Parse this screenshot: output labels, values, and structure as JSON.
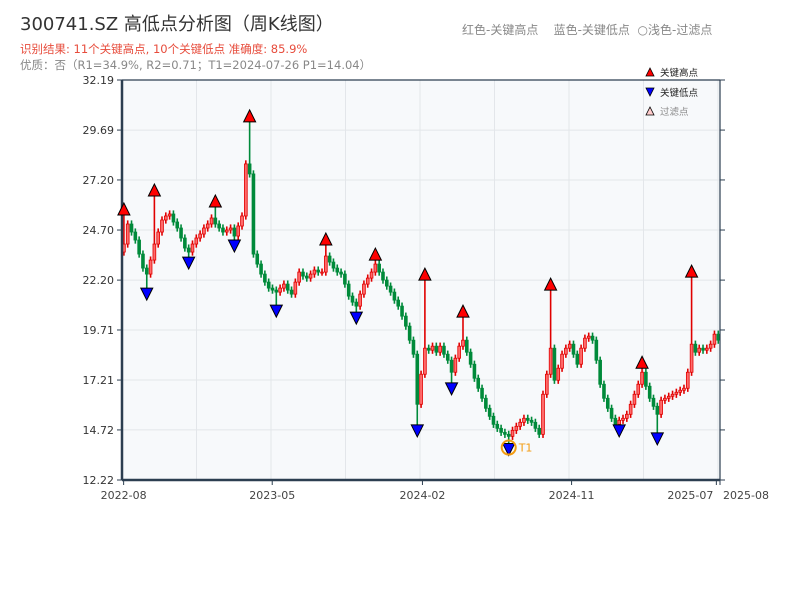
{
  "header": {
    "title": "300741.SZ 高低点分析图（周K线图）",
    "result": "识别结果: 11个关键高点, 10个关键低点  准确度: 85.9%",
    "quality": "优质：否（R1=34.9%, R2=0.71；T1=2024-07-26 P1=14.04）",
    "color_legend": "红色-关键高点    蓝色-关键低点  ○浅色-过滤点"
  },
  "chart_data": {
    "type": "candlestick",
    "title": "300741.SZ 高低点分析图（周K线图）",
    "first_week": "2022-07-29",
    "ylim": [
      12.22,
      32.19
    ],
    "yticks": [
      "12.22",
      "14.72",
      "17.21",
      "19.71",
      "22.20",
      "24.70",
      "27.20",
      "29.69",
      "32.19"
    ],
    "xticks": [
      {
        "label": "2022-08",
        "date": "2022-08-01"
      },
      {
        "label": "2023-05",
        "date": "2023-05-01"
      },
      {
        "label": "2024-02",
        "date": "2024-02-01"
      },
      {
        "label": "2024-11",
        "date": "2024-11-01"
      },
      {
        "label": "2025-07",
        "date": "2025-07-25"
      },
      {
        "label": "2025-08",
        "date": "2025-08-08"
      }
    ],
    "grid": true,
    "up_color": "#e00000",
    "down_color": "#008a3a",
    "closes": [
      24.0,
      25.0,
      24.6,
      24.2,
      23.5,
      22.8,
      22.5,
      23.2,
      24.0,
      24.6,
      25.2,
      25.4,
      25.5,
      25.1,
      24.8,
      24.3,
      23.8,
      23.6,
      24.0,
      24.3,
      24.5,
      24.8,
      25.0,
      25.3,
      25.0,
      24.8,
      24.6,
      24.7,
      24.8,
      24.4,
      24.9,
      25.4,
      28.0,
      27.5,
      23.5,
      23.0,
      22.5,
      22.1,
      21.8,
      21.7,
      21.6,
      21.8,
      22.0,
      21.7,
      21.5,
      22.1,
      22.6,
      22.4,
      22.3,
      22.5,
      22.7,
      22.6,
      22.6,
      23.4,
      23.1,
      22.8,
      22.6,
      22.5,
      22.0,
      21.4,
      21.1,
      20.9,
      21.5,
      22.0,
      22.3,
      22.6,
      23.0,
      22.6,
      22.2,
      21.9,
      21.6,
      21.2,
      20.9,
      20.4,
      19.9,
      19.2,
      18.5,
      16.0,
      17.5,
      18.8,
      18.7,
      18.9,
      18.6,
      18.9,
      18.5,
      18.2,
      17.6,
      18.3,
      18.9,
      19.2,
      18.6,
      18.0,
      17.3,
      16.8,
      16.3,
      15.8,
      15.4,
      15.0,
      14.8,
      14.6,
      14.5,
      14.4,
      14.7,
      14.9,
      15.1,
      15.3,
      15.2,
      15.1,
      14.8,
      14.5,
      16.5,
      17.5,
      18.8,
      17.2,
      17.8,
      18.5,
      18.8,
      19.0,
      18.5,
      18.0,
      18.8,
      19.3,
      19.4,
      19.2,
      18.2,
      17.0,
      16.3,
      15.8,
      15.3,
      15.0,
      15.2,
      15.3,
      15.5,
      16.0,
      16.5,
      17.0,
      17.6,
      16.9,
      16.3,
      15.9,
      15.5,
      16.2,
      16.3,
      16.4,
      16.5,
      16.6,
      16.7,
      16.8,
      17.6,
      19.0,
      18.6,
      18.8,
      18.7,
      18.8,
      19.0,
      19.5,
      19.2
    ],
    "key_highs": [
      {
        "week": 0,
        "price": 25.45
      },
      {
        "week": 8,
        "price": 26.4
      },
      {
        "week": 24,
        "price": 25.85
      },
      {
        "week": 33,
        "price": 30.1
      },
      {
        "week": 53,
        "price": 23.95
      },
      {
        "week": 66,
        "price": 23.2
      },
      {
        "week": 79,
        "price": 22.2
      },
      {
        "week": 89,
        "price": 20.35
      },
      {
        "week": 112,
        "price": 21.7
      },
      {
        "week": 136,
        "price": 17.8
      },
      {
        "week": 149,
        "price": 22.35
      }
    ],
    "key_lows": [
      {
        "week": 6,
        "price": 21.8
      },
      {
        "week": 17,
        "price": 23.35
      },
      {
        "week": 29,
        "price": 24.2
      },
      {
        "week": 40,
        "price": 20.95
      },
      {
        "week": 61,
        "price": 20.6
      },
      {
        "week": 77,
        "price": 14.97
      },
      {
        "week": 86,
        "price": 17.07
      },
      {
        "week": 101,
        "price": 14.04
      },
      {
        "week": 130,
        "price": 14.97
      },
      {
        "week": 140,
        "price": 14.57
      }
    ],
    "t1": {
      "label": "T1",
      "week": 101,
      "price": 14.04,
      "color": "#f39c12"
    },
    "legend": {
      "placement": "top-right",
      "entries": [
        {
          "label": "关键高点",
          "color": "#ff0000",
          "shape": "triangle-up"
        },
        {
          "label": "关键低点",
          "color": "#0000ff",
          "shape": "triangle-down"
        },
        {
          "label": "过滤点",
          "color": "#ffcccc",
          "shape": "triangle-up-light"
        }
      ]
    }
  }
}
